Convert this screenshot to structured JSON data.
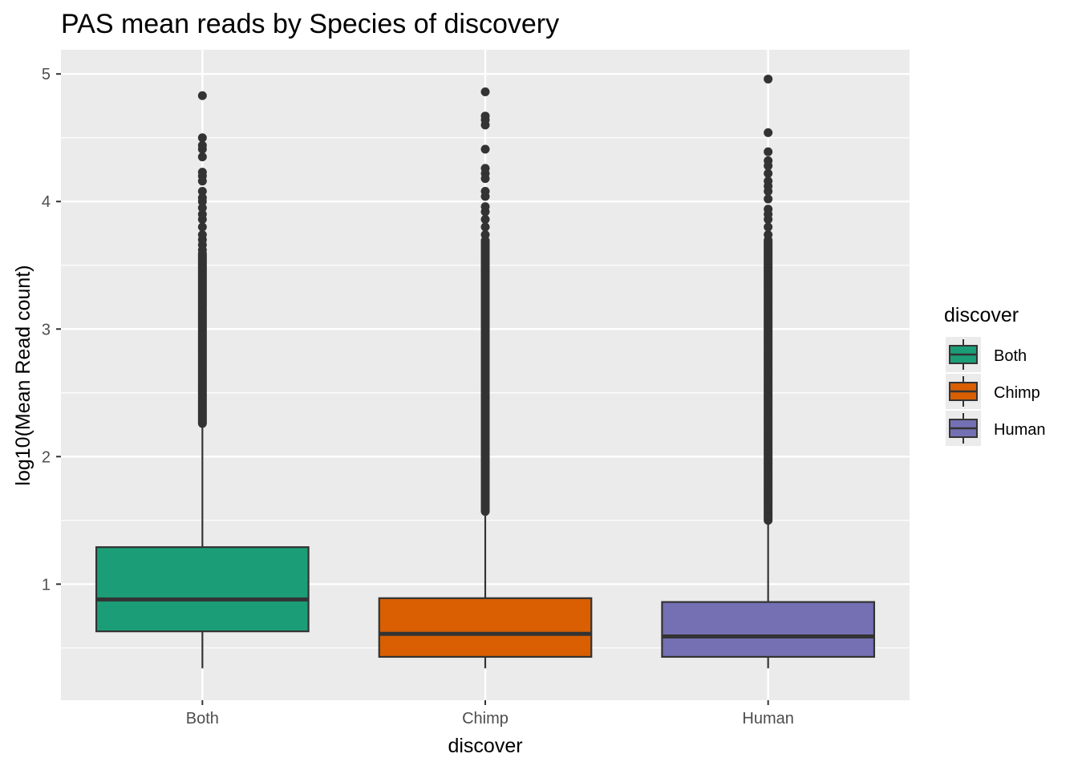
{
  "chart_data": {
    "type": "box",
    "title": "PAS mean reads by Species of discovery",
    "xlabel": "discover",
    "ylabel": "log10(Mean Read count)",
    "ylim": [
      0.09,
      5.19
    ],
    "yticks": [
      1,
      2,
      3,
      4,
      5
    ],
    "grid": true,
    "legend": {
      "title": "discover",
      "position": "right"
    },
    "categories": [
      "Both",
      "Chimp",
      "Human"
    ],
    "series": [
      {
        "name": "Both",
        "color": "#1b9e77",
        "whisker_low": 0.34,
        "q1": 0.63,
        "median": 0.88,
        "q3": 1.29,
        "whisker_high": 2.26,
        "outlier_min": 2.26,
        "outlier_max": 4.83,
        "dense_to": 3.6,
        "sparse": [
          3.62,
          3.66,
          3.7,
          3.74,
          3.8,
          3.86,
          3.9,
          3.95,
          4.0,
          4.03,
          4.08,
          4.16,
          4.2,
          4.23,
          4.35,
          4.41,
          4.44,
          4.5,
          4.83
        ]
      },
      {
        "name": "Chimp",
        "color": "#d95f02",
        "whisker_low": 0.34,
        "q1": 0.43,
        "median": 0.61,
        "q3": 0.89,
        "whisker_high": 1.57,
        "outlier_min": 1.57,
        "outlier_max": 4.86,
        "dense_to": 3.7,
        "sparse": [
          3.74,
          3.8,
          3.86,
          3.92,
          3.96,
          4.04,
          4.08,
          4.18,
          4.22,
          4.26,
          4.41,
          4.6,
          4.64,
          4.67,
          4.86
        ]
      },
      {
        "name": "Human",
        "color": "#7570b3",
        "whisker_low": 0.34,
        "q1": 0.43,
        "median": 0.59,
        "q3": 0.86,
        "whisker_high": 1.5,
        "outlier_min": 1.5,
        "outlier_max": 4.96,
        "dense_to": 3.7,
        "sparse": [
          3.74,
          3.8,
          3.86,
          3.9,
          3.94,
          4.02,
          4.08,
          4.12,
          4.16,
          4.22,
          4.28,
          4.32,
          4.39,
          4.54,
          4.96
        ]
      }
    ]
  }
}
